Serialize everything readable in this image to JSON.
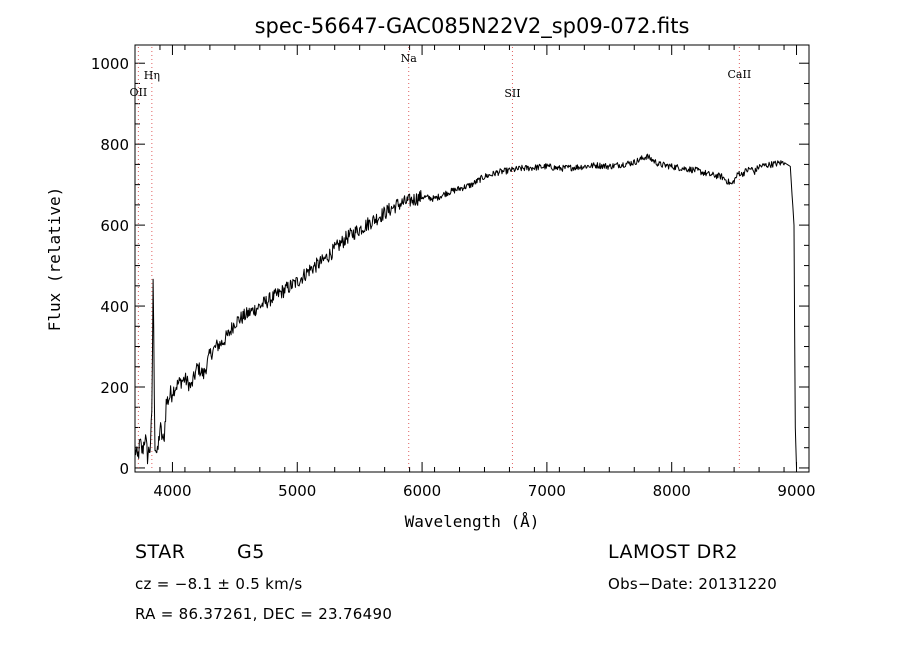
{
  "chart_data": {
    "type": "line",
    "title": "spec-56647-GAC085N22V2_sp09-072.fits",
    "xlabel": "Wavelength (Å)",
    "ylabel": "Flux (relative)",
    "xlim": [
      3700,
      9100
    ],
    "ylim": [
      -10,
      1045
    ],
    "xticks": [
      "4000",
      "5000",
      "6000",
      "7000",
      "8000",
      "9000"
    ],
    "yticks": [
      "0",
      "200",
      "400",
      "600",
      "800",
      "1000"
    ],
    "grid": false,
    "colors": {
      "line": "#000000",
      "marker": "#e06060",
      "axis": "#000000"
    },
    "series": [
      {
        "values_x": [
          3700,
          3720,
          3740,
          3760,
          3780,
          3800,
          3820,
          3835,
          3845,
          3860,
          3880,
          3900,
          3930,
          3950,
          4000,
          4050,
          4100,
          4150,
          4200,
          4250,
          4300,
          4350,
          4400,
          4450,
          4500,
          4550,
          4600,
          4650,
          4700,
          4800,
          4900,
          5000,
          5100,
          5200,
          5300,
          5400,
          5500,
          5600,
          5700,
          5800,
          5900,
          6000,
          6100,
          6200,
          6300,
          6400,
          6500,
          6560,
          6600,
          6700,
          6800,
          6900,
          7000,
          7100,
          7200,
          7300,
          7400,
          7500,
          7600,
          7700,
          7800,
          7850,
          7900,
          8000,
          8100,
          8200,
          8300,
          8400,
          8480,
          8500,
          8520,
          8540,
          8560,
          8600,
          8640,
          8660,
          8700,
          8800,
          8900,
          8950,
          8980,
          8990,
          9000
        ],
        "values_y": [
          50,
          20,
          60,
          40,
          80,
          30,
          50,
          120,
          470,
          60,
          30,
          100,
          60,
          160,
          190,
          210,
          220,
          200,
          250,
          230,
          280,
          300,
          310,
          330,
          360,
          370,
          380,
          390,
          400,
          420,
          440,
          460,
          490,
          510,
          540,
          570,
          590,
          610,
          630,
          650,
          660,
          670,
          665,
          680,
          690,
          700,
          720,
          725,
          730,
          735,
          740,
          742,
          745,
          740,
          742,
          745,
          748,
          745,
          750,
          755,
          770,
          760,
          750,
          745,
          740,
          735,
          725,
          720,
          700,
          710,
          720,
          730,
          725,
          735,
          740,
          730,
          745,
          750,
          755,
          745,
          600,
          100,
          0
        ]
      }
    ],
    "annotations": [
      {
        "label": "OII",
        "x": 3727
      },
      {
        "label": "Hη",
        "x": 3835
      },
      {
        "label": "Na",
        "x": 5893
      },
      {
        "label": "SII",
        "x": 6724
      },
      {
        "label": "CaII",
        "x": 8542
      }
    ]
  },
  "info": {
    "obj_type": "STAR",
    "subclass": "G5",
    "survey": "LAMOST DR2",
    "velocity": "cz = −8.1 ± 0.5 km/s",
    "obs_date": "Obs−Date: 20131220",
    "coords": "RA =  86.37261, DEC =  23.76490"
  }
}
